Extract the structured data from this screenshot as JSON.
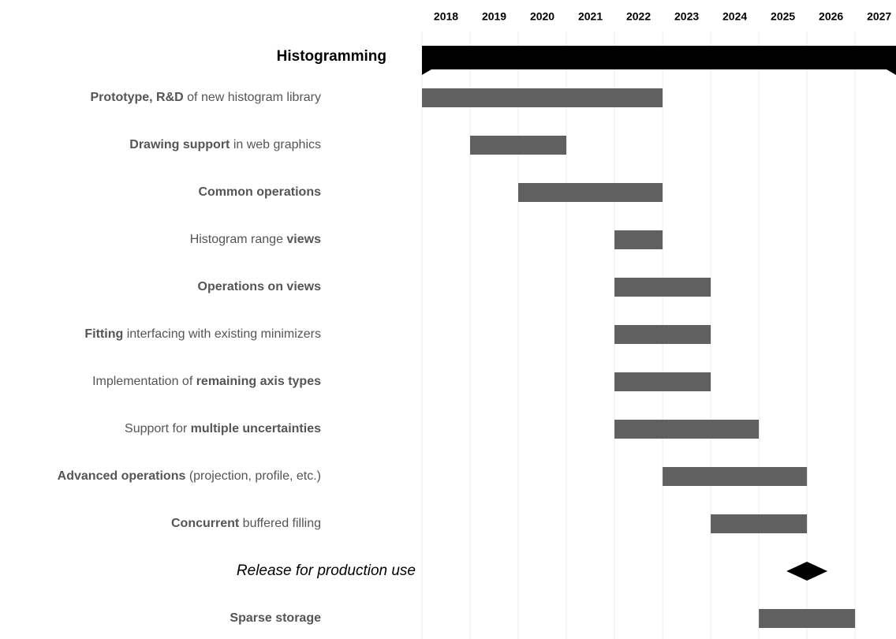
{
  "chart_data": {
    "type": "gantt",
    "xlim": [
      2018,
      2027.85
    ],
    "xticks": [
      2018,
      2019,
      2020,
      2021,
      2022,
      2023,
      2024,
      2025,
      2026,
      2027
    ],
    "grid": true,
    "bar_color": "#606060",
    "summary": {
      "label": "Histogramming",
      "start": 2018,
      "end": 2027.85,
      "color": "#000000"
    },
    "tasks": [
      {
        "label": [
          {
            "text": "Prototype, R&D",
            "bold": true
          },
          {
            "text": " of new histogram library"
          }
        ],
        "start": 2018,
        "end": 2023
      },
      {
        "label": [
          {
            "text": "Drawing support",
            "bold": true
          },
          {
            "text": " in web graphics"
          }
        ],
        "start": 2019,
        "end": 2021
      },
      {
        "label": [
          {
            "text": "Common operations",
            "bold": true
          }
        ],
        "start": 2020,
        "end": 2023
      },
      {
        "label": [
          {
            "text": "Histogram range "
          },
          {
            "text": "views",
            "bold": true
          }
        ],
        "start": 2022,
        "end": 2023
      },
      {
        "label": [
          {
            "text": "Operations on views",
            "bold": true
          }
        ],
        "start": 2022,
        "end": 2024
      },
      {
        "label": [
          {
            "text": "Fitting",
            "bold": true
          },
          {
            "text": " interfacing with existing minimizers"
          }
        ],
        "start": 2022,
        "end": 2024
      },
      {
        "label": [
          {
            "text": "Implementation of "
          },
          {
            "text": "remaining axis types",
            "bold": true
          }
        ],
        "start": 2022,
        "end": 2024
      },
      {
        "label": [
          {
            "text": "Support for "
          },
          {
            "text": "multiple uncertainties",
            "bold": true
          }
        ],
        "start": 2022,
        "end": 2025
      },
      {
        "label": [
          {
            "text": "Advanced operations",
            "bold": true
          },
          {
            "text": " (projection, profile, etc.)"
          }
        ],
        "start": 2023,
        "end": 2026
      },
      {
        "label": [
          {
            "text": "Concurrent",
            "bold": true
          },
          {
            "text": " buffered filling"
          }
        ],
        "start": 2024,
        "end": 2026
      },
      {
        "milestone": true,
        "label": [
          {
            "text": "Release for production use"
          }
        ],
        "date": 2026
      },
      {
        "label": [
          {
            "text": "Sparse storage",
            "bold": true
          }
        ],
        "start": 2025,
        "end": 2027
      }
    ]
  }
}
